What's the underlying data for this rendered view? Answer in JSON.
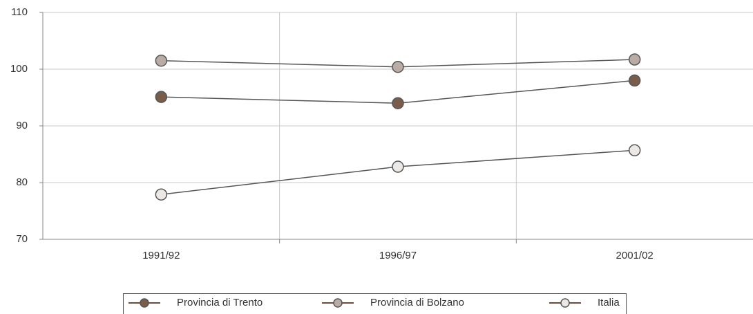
{
  "chart_data": {
    "type": "line",
    "categories": [
      "1991/92",
      "1996/97",
      "2001/02"
    ],
    "series": [
      {
        "name": "Provincia di Trento",
        "color": "#7a5c4a",
        "values": [
          95.1,
          94.0,
          98.0
        ]
      },
      {
        "name": "Provincia di Bolzano",
        "color": "#b8aca5",
        "values": [
          101.5,
          100.4,
          101.7
        ]
      },
      {
        "name": "Italia",
        "color": "#ebe8e6",
        "values": [
          77.9,
          82.8,
          85.7
        ]
      }
    ],
    "ylim": [
      70,
      110
    ],
    "yticks": [
      70,
      80,
      90,
      100,
      110
    ],
    "grid": true,
    "legend": "bottom"
  }
}
